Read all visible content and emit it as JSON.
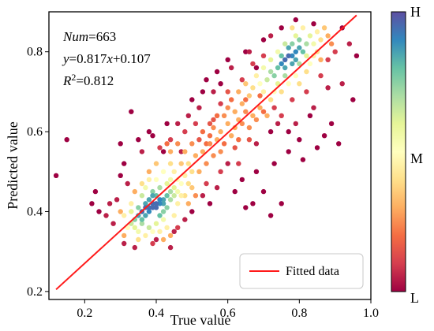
{
  "chart_data": {
    "type": "scatter",
    "xlabel": "True value",
    "ylabel": "Predicted value",
    "xlim": [
      0.1,
      1.0
    ],
    "ylim": [
      0.18,
      0.9
    ],
    "x_ticks": [
      0.2,
      0.4,
      0.6,
      0.8,
      1.0
    ],
    "x_tick_labels": [
      "0.2",
      "0.4",
      "0.6",
      "0.8",
      "1.0"
    ],
    "y_ticks": [
      0.2,
      0.4,
      0.6,
      0.8
    ],
    "y_tick_labels": [
      "0.2",
      "0.4",
      "0.6",
      "0.8"
    ],
    "grid": false,
    "legend": {
      "position": "bottom-right",
      "entries": [
        {
          "label": "Fitted data",
          "color": "#ff1a1a"
        }
      ]
    },
    "fit_line": {
      "slope": 0.817,
      "intercept": 0.107,
      "x_range": [
        0.12,
        0.96
      ],
      "color": "#ff1a1a"
    },
    "annotation": {
      "num_label": "Num",
      "num_value": "=663",
      "eq_y": "y",
      "eq_mid": "=0.817",
      "eq_x": "x",
      "eq_end": "+0.107",
      "r_label": "R",
      "r_sup": "2",
      "r_value": "=0.812"
    },
    "colorbar": {
      "label_high": "H",
      "label_mid": "M",
      "label_low": "L",
      "colormap": "Spectral"
    },
    "points_density_encoded": true,
    "points": [
      [
        0.36,
        0.4,
        0.95
      ],
      [
        0.37,
        0.41,
        0.95
      ],
      [
        0.38,
        0.41,
        0.95
      ],
      [
        0.39,
        0.42,
        0.95
      ],
      [
        0.4,
        0.42,
        0.95
      ],
      [
        0.41,
        0.42,
        0.9
      ],
      [
        0.38,
        0.4,
        0.9
      ],
      [
        0.39,
        0.41,
        0.95
      ],
      [
        0.4,
        0.41,
        0.95
      ],
      [
        0.41,
        0.43,
        0.9
      ],
      [
        0.42,
        0.43,
        0.85
      ],
      [
        0.35,
        0.39,
        0.85
      ],
      [
        0.36,
        0.38,
        0.8
      ],
      [
        0.37,
        0.39,
        0.85
      ],
      [
        0.42,
        0.42,
        0.85
      ],
      [
        0.43,
        0.44,
        0.8
      ],
      [
        0.38,
        0.43,
        0.85
      ],
      [
        0.39,
        0.44,
        0.85
      ],
      [
        0.4,
        0.44,
        0.8
      ],
      [
        0.37,
        0.42,
        0.85
      ],
      [
        0.34,
        0.38,
        0.75
      ],
      [
        0.35,
        0.41,
        0.75
      ],
      [
        0.43,
        0.41,
        0.75
      ],
      [
        0.44,
        0.43,
        0.7
      ],
      [
        0.36,
        0.37,
        0.7
      ],
      [
        0.41,
        0.39,
        0.8
      ],
      [
        0.42,
        0.4,
        0.75
      ],
      [
        0.44,
        0.45,
        0.7
      ],
      [
        0.45,
        0.44,
        0.65
      ],
      [
        0.39,
        0.45,
        0.75
      ],
      [
        0.33,
        0.37,
        0.65
      ],
      [
        0.34,
        0.36,
        0.6
      ],
      [
        0.33,
        0.4,
        0.6
      ],
      [
        0.45,
        0.46,
        0.6
      ],
      [
        0.46,
        0.45,
        0.55
      ],
      [
        0.36,
        0.44,
        0.65
      ],
      [
        0.35,
        0.35,
        0.55
      ],
      [
        0.38,
        0.36,
        0.65
      ],
      [
        0.4,
        0.37,
        0.6
      ],
      [
        0.42,
        0.38,
        0.55
      ],
      [
        0.44,
        0.48,
        0.55
      ],
      [
        0.46,
        0.48,
        0.5
      ],
      [
        0.47,
        0.47,
        0.5
      ],
      [
        0.41,
        0.46,
        0.7
      ],
      [
        0.43,
        0.47,
        0.6
      ],
      [
        0.32,
        0.36,
        0.5
      ],
      [
        0.31,
        0.39,
        0.45
      ],
      [
        0.37,
        0.46,
        0.55
      ],
      [
        0.4,
        0.48,
        0.5
      ],
      [
        0.47,
        0.44,
        0.45
      ],
      [
        0.48,
        0.49,
        0.45
      ],
      [
        0.49,
        0.47,
        0.4
      ],
      [
        0.45,
        0.5,
        0.45
      ],
      [
        0.44,
        0.52,
        0.4
      ],
      [
        0.42,
        0.5,
        0.5
      ],
      [
        0.38,
        0.48,
        0.45
      ],
      [
        0.5,
        0.5,
        0.4
      ],
      [
        0.49,
        0.52,
        0.4
      ],
      [
        0.33,
        0.42,
        0.45
      ],
      [
        0.36,
        0.47,
        0.4
      ],
      [
        0.46,
        0.42,
        0.45
      ],
      [
        0.48,
        0.44,
        0.4
      ],
      [
        0.43,
        0.36,
        0.45
      ],
      [
        0.45,
        0.39,
        0.45
      ],
      [
        0.39,
        0.35,
        0.5
      ],
      [
        0.37,
        0.34,
        0.45
      ],
      [
        0.35,
        0.33,
        0.4
      ],
      [
        0.41,
        0.35,
        0.45
      ],
      [
        0.47,
        0.52,
        0.35
      ],
      [
        0.51,
        0.54,
        0.3
      ],
      [
        0.52,
        0.5,
        0.3
      ],
      [
        0.5,
        0.46,
        0.35
      ],
      [
        0.44,
        0.55,
        0.3
      ],
      [
        0.4,
        0.52,
        0.35
      ],
      [
        0.53,
        0.55,
        0.3
      ],
      [
        0.48,
        0.55,
        0.3
      ],
      [
        0.3,
        0.4,
        0.3
      ],
      [
        0.31,
        0.34,
        0.3
      ],
      [
        0.34,
        0.45,
        0.3
      ],
      [
        0.46,
        0.57,
        0.25
      ],
      [
        0.54,
        0.52,
        0.25
      ],
      [
        0.49,
        0.42,
        0.3
      ],
      [
        0.51,
        0.44,
        0.25
      ],
      [
        0.42,
        0.33,
        0.3
      ],
      [
        0.44,
        0.34,
        0.3
      ],
      [
        0.38,
        0.5,
        0.3
      ],
      [
        0.55,
        0.57,
        0.25
      ],
      [
        0.56,
        0.54,
        0.25
      ],
      [
        0.5,
        0.57,
        0.25
      ],
      [
        0.43,
        0.57,
        0.2
      ],
      [
        0.76,
        0.78,
        0.95
      ],
      [
        0.77,
        0.79,
        0.95
      ],
      [
        0.78,
        0.79,
        0.9
      ],
      [
        0.79,
        0.8,
        0.9
      ],
      [
        0.75,
        0.77,
        0.9
      ],
      [
        0.76,
        0.76,
        0.85
      ],
      [
        0.78,
        0.77,
        0.85
      ],
      [
        0.8,
        0.81,
        0.85
      ],
      [
        0.77,
        0.81,
        0.85
      ],
      [
        0.79,
        0.78,
        0.85
      ],
      [
        0.74,
        0.76,
        0.8
      ],
      [
        0.81,
        0.8,
        0.8
      ],
      [
        0.75,
        0.79,
        0.8
      ],
      [
        0.73,
        0.74,
        0.75
      ],
      [
        0.8,
        0.83,
        0.75
      ],
      [
        0.82,
        0.82,
        0.7
      ],
      [
        0.72,
        0.75,
        0.7
      ],
      [
        0.78,
        0.82,
        0.75
      ],
      [
        0.76,
        0.74,
        0.7
      ],
      [
        0.8,
        0.77,
        0.7
      ],
      [
        0.71,
        0.73,
        0.65
      ],
      [
        0.83,
        0.84,
        0.6
      ],
      [
        0.82,
        0.79,
        0.6
      ],
      [
        0.74,
        0.72,
        0.6
      ],
      [
        0.7,
        0.76,
        0.55
      ],
      [
        0.72,
        0.78,
        0.6
      ],
      [
        0.84,
        0.82,
        0.55
      ],
      [
        0.79,
        0.84,
        0.6
      ],
      [
        0.76,
        0.82,
        0.65
      ],
      [
        0.69,
        0.72,
        0.5
      ],
      [
        0.85,
        0.85,
        0.45
      ],
      [
        0.83,
        0.77,
        0.5
      ],
      [
        0.73,
        0.7,
        0.5
      ],
      [
        0.68,
        0.74,
        0.45
      ],
      [
        0.81,
        0.86,
        0.45
      ],
      [
        0.86,
        0.83,
        0.4
      ],
      [
        0.77,
        0.72,
        0.5
      ],
      [
        0.7,
        0.7,
        0.45
      ],
      [
        0.67,
        0.71,
        0.4
      ],
      [
        0.84,
        0.79,
        0.45
      ],
      [
        0.79,
        0.74,
        0.5
      ],
      [
        0.74,
        0.8,
        0.55
      ],
      [
        0.66,
        0.69,
        0.35
      ],
      [
        0.87,
        0.86,
        0.35
      ],
      [
        0.82,
        0.75,
        0.4
      ],
      [
        0.72,
        0.68,
        0.4
      ],
      [
        0.65,
        0.72,
        0.35
      ],
      [
        0.88,
        0.84,
        0.3
      ],
      [
        0.75,
        0.7,
        0.4
      ],
      [
        0.8,
        0.72,
        0.4
      ],
      [
        0.64,
        0.67,
        0.3
      ],
      [
        0.69,
        0.66,
        0.3
      ],
      [
        0.85,
        0.8,
        0.4
      ],
      [
        0.78,
        0.86,
        0.4
      ],
      [
        0.86,
        0.78,
        0.3
      ],
      [
        0.63,
        0.7,
        0.3
      ],
      [
        0.89,
        0.82,
        0.25
      ],
      [
        0.71,
        0.64,
        0.3
      ],
      [
        0.62,
        0.65,
        0.3
      ],
      [
        0.67,
        0.64,
        0.3
      ],
      [
        0.58,
        0.6,
        0.3
      ],
      [
        0.6,
        0.62,
        0.3
      ],
      [
        0.61,
        0.59,
        0.3
      ],
      [
        0.59,
        0.64,
        0.25
      ],
      [
        0.57,
        0.58,
        0.3
      ],
      [
        0.62,
        0.61,
        0.3
      ],
      [
        0.63,
        0.63,
        0.3
      ],
      [
        0.56,
        0.61,
        0.25
      ],
      [
        0.6,
        0.66,
        0.25
      ],
      [
        0.64,
        0.62,
        0.25
      ],
      [
        0.55,
        0.59,
        0.2
      ],
      [
        0.65,
        0.65,
        0.25
      ],
      [
        0.58,
        0.55,
        0.25
      ],
      [
        0.53,
        0.6,
        0.2
      ],
      [
        0.66,
        0.61,
        0.25
      ],
      [
        0.61,
        0.68,
        0.2
      ],
      [
        0.57,
        0.64,
        0.2
      ],
      [
        0.54,
        0.57,
        0.2
      ],
      [
        0.68,
        0.63,
        0.25
      ],
      [
        0.59,
        0.57,
        0.2
      ],
      [
        0.52,
        0.58,
        0.15
      ],
      [
        0.56,
        0.63,
        0.15
      ],
      [
        0.63,
        0.58,
        0.2
      ],
      [
        0.65,
        0.68,
        0.2
      ],
      [
        0.62,
        0.56,
        0.15
      ],
      [
        0.55,
        0.62,
        0.15
      ],
      [
        0.69,
        0.69,
        0.2
      ],
      [
        0.7,
        0.65,
        0.2
      ],
      [
        0.6,
        0.7,
        0.15
      ],
      [
        0.66,
        0.58,
        0.15
      ],
      [
        0.51,
        0.62,
        0.1
      ],
      [
        0.58,
        0.67,
        0.1
      ],
      [
        0.64,
        0.73,
        0.1
      ],
      [
        0.67,
        0.77,
        0.1
      ],
      [
        0.7,
        0.79,
        0.1
      ],
      [
        0.73,
        0.66,
        0.1
      ],
      [
        0.75,
        0.64,
        0.1
      ],
      [
        0.78,
        0.68,
        0.1
      ],
      [
        0.82,
        0.7,
        0.1
      ],
      [
        0.86,
        0.74,
        0.1
      ],
      [
        0.88,
        0.78,
        0.1
      ],
      [
        0.9,
        0.8,
        0.1
      ],
      [
        0.63,
        0.52,
        0.1
      ],
      [
        0.58,
        0.5,
        0.1
      ],
      [
        0.54,
        0.47,
        0.1
      ],
      [
        0.52,
        0.66,
        0.05
      ],
      [
        0.48,
        0.6,
        0.1
      ],
      [
        0.46,
        0.62,
        0.05
      ],
      [
        0.44,
        0.58,
        0.1
      ],
      [
        0.41,
        0.56,
        0.1
      ],
      [
        0.56,
        0.7,
        0.05
      ],
      [
        0.61,
        0.76,
        0.05
      ],
      [
        0.66,
        0.8,
        0.05
      ],
      [
        0.72,
        0.84,
        0.05
      ],
      [
        0.74,
        0.62,
        0.05
      ],
      [
        0.79,
        0.62,
        0.05
      ],
      [
        0.84,
        0.66,
        0.05
      ],
      [
        0.88,
        0.71,
        0.05
      ],
      [
        0.92,
        0.72,
        0.05
      ],
      [
        0.68,
        0.57,
        0.05
      ],
      [
        0.6,
        0.52,
        0.05
      ],
      [
        0.57,
        0.46,
        0.05
      ],
      [
        0.53,
        0.44,
        0.05
      ],
      [
        0.36,
        0.55,
        0.05
      ],
      [
        0.32,
        0.47,
        0.05
      ],
      [
        0.29,
        0.43,
        0.05
      ],
      [
        0.28,
        0.37,
        0.05
      ],
      [
        0.31,
        0.32,
        0.05
      ],
      [
        0.34,
        0.31,
        0.05
      ],
      [
        0.4,
        0.33,
        0.05
      ],
      [
        0.45,
        0.35,
        0.05
      ],
      [
        0.48,
        0.38,
        0.05
      ],
      [
        0.27,
        0.42,
        0.05
      ],
      [
        0.26,
        0.39,
        0.05
      ],
      [
        0.3,
        0.49,
        0.0
      ],
      [
        0.35,
        0.58,
        0.0
      ],
      [
        0.38,
        0.6,
        0.0
      ],
      [
        0.43,
        0.62,
        0.0
      ],
      [
        0.5,
        0.68,
        0.0
      ],
      [
        0.7,
        0.83,
        0.0
      ],
      [
        0.75,
        0.86,
        0.0
      ],
      [
        0.79,
        0.88,
        0.0
      ],
      [
        0.84,
        0.87,
        0.0
      ],
      [
        0.92,
        0.86,
        0.0
      ],
      [
        0.94,
        0.82,
        0.05
      ],
      [
        0.96,
        0.79,
        0.0
      ],
      [
        0.95,
        0.68,
        0.0
      ],
      [
        0.91,
        0.57,
        0.0
      ],
      [
        0.87,
        0.59,
        0.0
      ],
      [
        0.83,
        0.64,
        0.0
      ],
      [
        0.8,
        0.58,
        0.0
      ],
      [
        0.77,
        0.6,
        0.0
      ],
      [
        0.72,
        0.6,
        0.0
      ],
      [
        0.7,
        0.45,
        0.0
      ],
      [
        0.67,
        0.42,
        0.0
      ],
      [
        0.65,
        0.41,
        0.0
      ],
      [
        0.72,
        0.39,
        0.0
      ],
      [
        0.75,
        0.42,
        0.0
      ],
      [
        0.55,
        0.42,
        0.0
      ],
      [
        0.5,
        0.4,
        0.0
      ],
      [
        0.12,
        0.49,
        0.0
      ],
      [
        0.15,
        0.58,
        0.0
      ],
      [
        0.22,
        0.42,
        0.0
      ],
      [
        0.24,
        0.4,
        0.0
      ],
      [
        0.23,
        0.45,
        0.0
      ],
      [
        0.3,
        0.57,
        0.0
      ],
      [
        0.31,
        0.52,
        0.0
      ],
      [
        0.33,
        0.65,
        0.0
      ],
      [
        0.39,
        0.59,
        0.0
      ],
      [
        0.42,
        0.55,
        0.0
      ],
      [
        0.65,
        0.8,
        0.0
      ],
      [
        0.68,
        0.76,
        0.0
      ],
      [
        0.58,
        0.72,
        0.0
      ],
      [
        0.54,
        0.73,
        0.0
      ],
      [
        0.6,
        0.78,
        0.0
      ],
      [
        0.62,
        0.45,
        0.0
      ],
      [
        0.64,
        0.48,
        0.0
      ],
      [
        0.68,
        0.5,
        0.0
      ],
      [
        0.73,
        0.52,
        0.0
      ],
      [
        0.77,
        0.55,
        0.0
      ],
      [
        0.81,
        0.53,
        0.0
      ],
      [
        0.85,
        0.56,
        0.0
      ],
      [
        0.89,
        0.62,
        0.0
      ],
      [
        0.47,
        0.55,
        0.05
      ],
      [
        0.49,
        0.64,
        0.05
      ],
      [
        0.53,
        0.7,
        0.0
      ],
      [
        0.57,
        0.75,
        0.0
      ],
      [
        0.46,
        0.36,
        0.1
      ],
      [
        0.44,
        0.31,
        0.05
      ],
      [
        0.39,
        0.32,
        0.1
      ]
    ]
  }
}
